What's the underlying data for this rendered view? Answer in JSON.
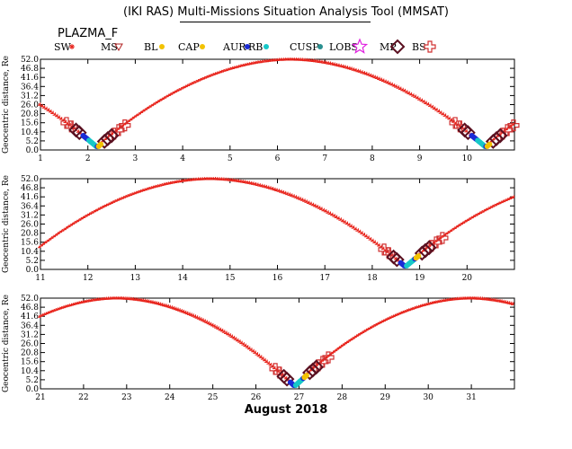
{
  "title": "(IKI RAS) Multi-Missions Situation Analysis Tool (MMSAT)",
  "subtitle": "PLAZMA_F",
  "xlabel": "August 2018",
  "ylabel": "Geocentric distance, Re",
  "legend": [
    {
      "label": "SW",
      "symbol": "asterisk",
      "color": "#e8241c"
    },
    {
      "label": "MS",
      "symbol": "triangle-down",
      "color": "#b22222"
    },
    {
      "label": "BL",
      "symbol": "dot",
      "color": "#f2c200"
    },
    {
      "label": "CAP",
      "symbol": "dot",
      "color": "#f2c200"
    },
    {
      "label": "AUR",
      "symbol": "dot",
      "color": "#1a2bd6"
    },
    {
      "label": "RB",
      "symbol": "dot",
      "color": "#17c8c8"
    },
    {
      "label": "CUSP",
      "symbol": "dot",
      "color": "#2a9090"
    },
    {
      "label": "LOBS",
      "symbol": "star",
      "color": "#e020e0"
    },
    {
      "label": "MP",
      "symbol": "diamond",
      "color": "#5a1020"
    },
    {
      "label": "BS",
      "symbol": "cross",
      "color": "#d03030"
    }
  ],
  "colors": {
    "sw": "#e8241c",
    "bs": "#d03030",
    "mp": "#5a1020",
    "rb": "#17c8c8",
    "aur": "#1a2bd6",
    "cap": "#f2c200"
  },
  "chart_data": [
    {
      "type": "scatter",
      "x_range": [
        1,
        11
      ],
      "ylim": [
        0,
        52
      ],
      "x_ticks": [
        1,
        2,
        3,
        4,
        5,
        6,
        7,
        8,
        9,
        10
      ],
      "y_ticks": [
        0.0,
        5.2,
        10.4,
        15.6,
        20.8,
        26.0,
        31.2,
        36.4,
        41.6,
        46.8,
        52.0
      ],
      "y_tick_labels": [
        "0.0",
        "5.2",
        "10.4",
        "15.6",
        "20.8",
        "26.0",
        "31.2",
        "36.4",
        "41.6",
        "46.8",
        "52.0"
      ],
      "apogee_day": 6.3,
      "perigee_days": [
        2.1,
        10.3
      ],
      "orbit": {
        "period_days": 8.2,
        "rmax": 51.5,
        "rmin": 1.5
      }
    },
    {
      "type": "scatter",
      "x_range": [
        11,
        21
      ],
      "ylim": [
        0,
        52
      ],
      "x_ticks": [
        11,
        12,
        13,
        14,
        15,
        16,
        17,
        18,
        19,
        20
      ],
      "y_ticks": [
        0.0,
        5.2,
        10.4,
        15.6,
        20.8,
        26.0,
        31.2,
        36.4,
        41.6,
        46.8,
        52.0
      ],
      "y_tick_labels": [
        "0.0",
        "5.2",
        "10.4",
        "15.6",
        "20.8",
        "26.0",
        "31.2",
        "36.4",
        "41.6",
        "46.8",
        "52.0"
      ],
      "apogee_day": 14.6,
      "perigee_days": [
        10.3,
        18.8
      ],
      "orbit": {
        "period_days": 8.2,
        "rmax": 51.5,
        "rmin": 1.5
      }
    },
    {
      "type": "scatter",
      "x_range": [
        21,
        32
      ],
      "ylim": [
        0,
        52
      ],
      "x_ticks": [
        21,
        22,
        23,
        24,
        25,
        26,
        27,
        28,
        29,
        30,
        31
      ],
      "y_ticks": [
        0.0,
        5.2,
        10.4,
        15.6,
        20.8,
        26.0,
        31.2,
        36.4,
        41.6,
        46.8,
        52.0
      ],
      "y_tick_labels": [
        "0.0",
        "5.2",
        "10.4",
        "15.6",
        "20.8",
        "26.0",
        "31.2",
        "36.4",
        "41.6",
        "46.8",
        "52.0"
      ],
      "apogee_day": 22.8,
      "perigee_days": [
        18.8,
        27.0
      ],
      "orbit": {
        "period_days": 8.2,
        "rmax": 51.5,
        "rmin": 1.5
      }
    }
  ]
}
